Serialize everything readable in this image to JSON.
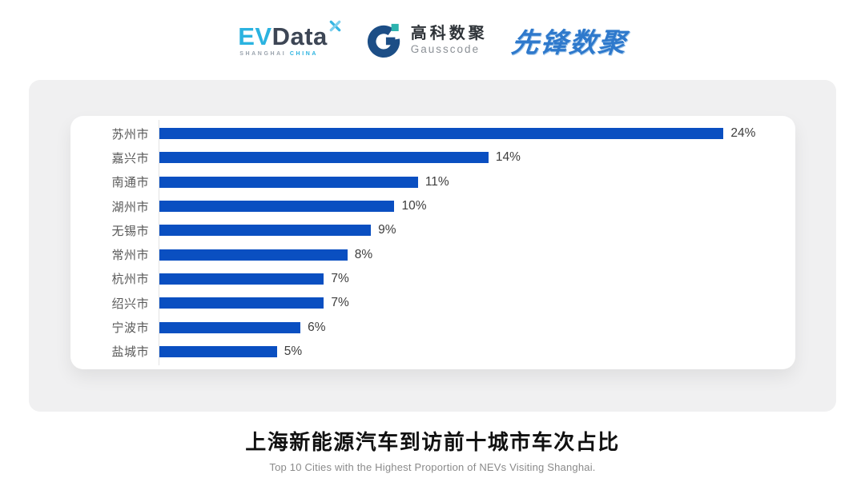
{
  "header": {
    "evdata": {
      "ev_text": "EV",
      "data_text": "Data",
      "sub_left": "SHANGHAI",
      "sub_right": "CHINA",
      "accent_color": "#2bb3e0",
      "dark_color": "#3d4655"
    },
    "gausscode": {
      "cn_name": "高科数聚",
      "en_name": "Gausscode",
      "mark_navy": "#1c4e86",
      "mark_teal": "#2cb3ae"
    },
    "xianfeng": {
      "text": "先锋数聚",
      "color": "#2e79cc"
    }
  },
  "chart_data": {
    "type": "bar",
    "orientation": "horizontal",
    "title": "上海新能源汽车到访前十城市车次占比",
    "subtitle": "Top 10 Cities with the Highest Proportion of  NEVs Visiting Shanghai.",
    "categories": [
      "苏州市",
      "嘉兴市",
      "南通市",
      "湖州市",
      "无锡市",
      "常州市",
      "杭州市",
      "绍兴市",
      "宁波市",
      "盐城市"
    ],
    "values": [
      24,
      14,
      11,
      10,
      9,
      8,
      7,
      7,
      6,
      5
    ],
    "value_labels": [
      "24%",
      "14%",
      "11%",
      "10%",
      "9%",
      "8%",
      "7%",
      "7%",
      "6%",
      "5%"
    ],
    "value_suffix": "%",
    "xlabel": "",
    "ylabel": "",
    "xlim": [
      0,
      24
    ],
    "grid": false,
    "legend": false,
    "bar_color": "#0a4fc1",
    "axis_line_color": "#e2e2e3",
    "panel_bg": "#f0f0f1",
    "card_bg": "#ffffff"
  }
}
